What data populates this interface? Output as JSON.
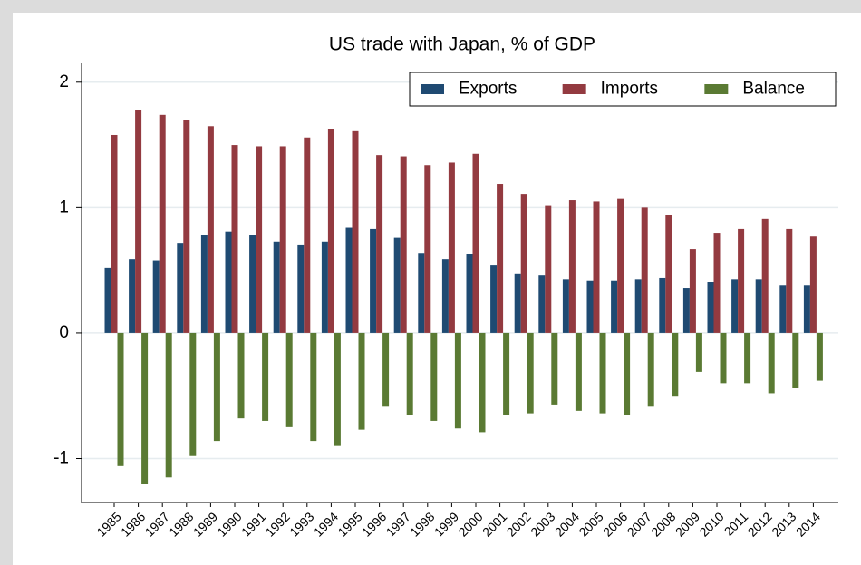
{
  "chart_data": {
    "type": "bar",
    "title": "US trade with Japan, % of GDP",
    "categories": [
      "1985",
      "1986",
      "1987",
      "1988",
      "1989",
      "1990",
      "1991",
      "1992",
      "1993",
      "1994",
      "1995",
      "1996",
      "1997",
      "1998",
      "1999",
      "2000",
      "2001",
      "2002",
      "2003",
      "2004",
      "2005",
      "2006",
      "2007",
      "2008",
      "2009",
      "2010",
      "2011",
      "2012",
      "2013",
      "2014"
    ],
    "series": [
      {
        "name": "Exports",
        "color": "#1f4a72",
        "values": [
          0.52,
          0.59,
          0.58,
          0.72,
          0.78,
          0.81,
          0.78,
          0.73,
          0.7,
          0.73,
          0.84,
          0.83,
          0.76,
          0.64,
          0.59,
          0.63,
          0.54,
          0.47,
          0.46,
          0.43,
          0.42,
          0.42,
          0.43,
          0.44,
          0.36,
          0.41,
          0.43,
          0.43,
          0.38,
          0.38
        ]
      },
      {
        "name": "Imports",
        "color": "#933a40",
        "values": [
          1.58,
          1.78,
          1.74,
          1.7,
          1.65,
          1.5,
          1.49,
          1.49,
          1.56,
          1.63,
          1.61,
          1.42,
          1.41,
          1.34,
          1.36,
          1.43,
          1.19,
          1.11,
          1.02,
          1.06,
          1.05,
          1.07,
          1.0,
          0.94,
          0.67,
          0.8,
          0.83,
          0.91,
          0.83,
          0.77
        ]
      },
      {
        "name": "Balance",
        "color": "#5a7a33",
        "values": [
          -1.06,
          -1.2,
          -1.15,
          -0.98,
          -0.86,
          -0.68,
          -0.7,
          -0.75,
          -0.86,
          -0.9,
          -0.77,
          -0.58,
          -0.65,
          -0.7,
          -0.76,
          -0.79,
          -0.65,
          -0.64,
          -0.57,
          -0.62,
          -0.64,
          -0.65,
          -0.58,
          -0.5,
          -0.31,
          -0.4,
          -0.4,
          -0.48,
          -0.44,
          -0.38
        ]
      }
    ],
    "ylim": [
      -1.35,
      2.15
    ],
    "yticks": [
      -1,
      0,
      1,
      2
    ],
    "grid": true,
    "legend": "top-right"
  }
}
